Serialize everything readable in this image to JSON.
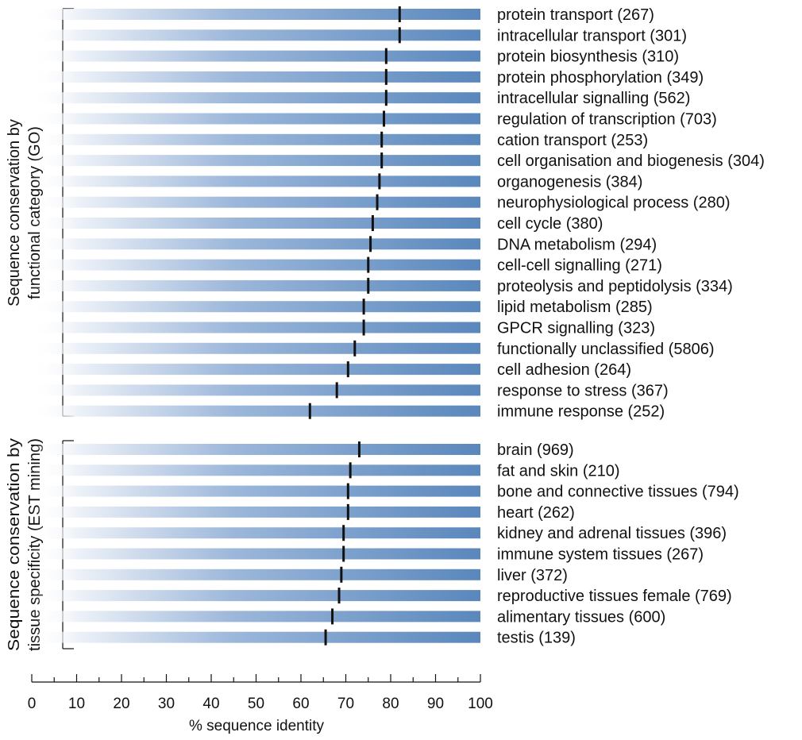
{
  "chart_data": {
    "type": "bar",
    "xlabel": "% sequence identity",
    "xlim": [
      0,
      100
    ],
    "xticks": [
      "0",
      "10",
      "20",
      "30",
      "40",
      "50",
      "60",
      "70",
      "80",
      "90",
      "100"
    ],
    "colors": {
      "bar_dark": "#5a87bc",
      "bar_mid": "#9cb7da",
      "bar_light": "#c9d8ea",
      "marker": "#111111"
    },
    "groups": [
      {
        "title_line1": "Sequence conservation by",
        "title_line2": "functional category (GO)",
        "rows": [
          {
            "label": "protein transport (267)",
            "value": 82
          },
          {
            "label": "intracellular transport (301)",
            "value": 82
          },
          {
            "label": "protein biosynthesis (310)",
            "value": 79
          },
          {
            "label": "protein phosphorylation (349)",
            "value": 79
          },
          {
            "label": "intracellular signalling (562)",
            "value": 79
          },
          {
            "label": "regulation of transcription (703)",
            "value": 78.5
          },
          {
            "label": "cation transport (253)",
            "value": 78
          },
          {
            "label": "cell organisation and biogenesis (304)",
            "value": 78
          },
          {
            "label": "organogenesis (384)",
            "value": 77.5
          },
          {
            "label": "neurophysiological process (280)",
            "value": 77
          },
          {
            "label": "cell cycle (380)",
            "value": 76
          },
          {
            "label": "DNA metabolism (294)",
            "value": 75.5
          },
          {
            "label": "cell-cell signalling (271)",
            "value": 75
          },
          {
            "label": "proteolysis and peptidolysis (334)",
            "value": 75
          },
          {
            "label": "lipid metabolism (285)",
            "value": 74
          },
          {
            "label": "GPCR signalling (323)",
            "value": 74
          },
          {
            "label": "functionally unclassified (5806)",
            "value": 72
          },
          {
            "label": "cell adhesion (264)",
            "value": 70.5
          },
          {
            "label": "response to stress (367)",
            "value": 68
          },
          {
            "label": "immune response (252)",
            "value": 62
          }
        ]
      },
      {
        "title_line1": "Sequence conservation by",
        "title_line2": "tissue specificity (EST mining)",
        "rows": [
          {
            "label": "brain (969)",
            "value": 73
          },
          {
            "label": "fat and skin (210)",
            "value": 71
          },
          {
            "label": "bone and connective tissues (794)",
            "value": 70.5
          },
          {
            "label": "heart (262)",
            "value": 70.5
          },
          {
            "label": "kidney and adrenal tissues (396)",
            "value": 69.5
          },
          {
            "label": "immune system tissues (267)",
            "value": 69.5
          },
          {
            "label": "liver (372)",
            "value": 69
          },
          {
            "label": "reproductive tissues female (769)",
            "value": 68.5
          },
          {
            "label": "alimentary tissues (600)",
            "value": 67
          },
          {
            "label": "testis (139)",
            "value": 65.5
          }
        ]
      }
    ]
  }
}
